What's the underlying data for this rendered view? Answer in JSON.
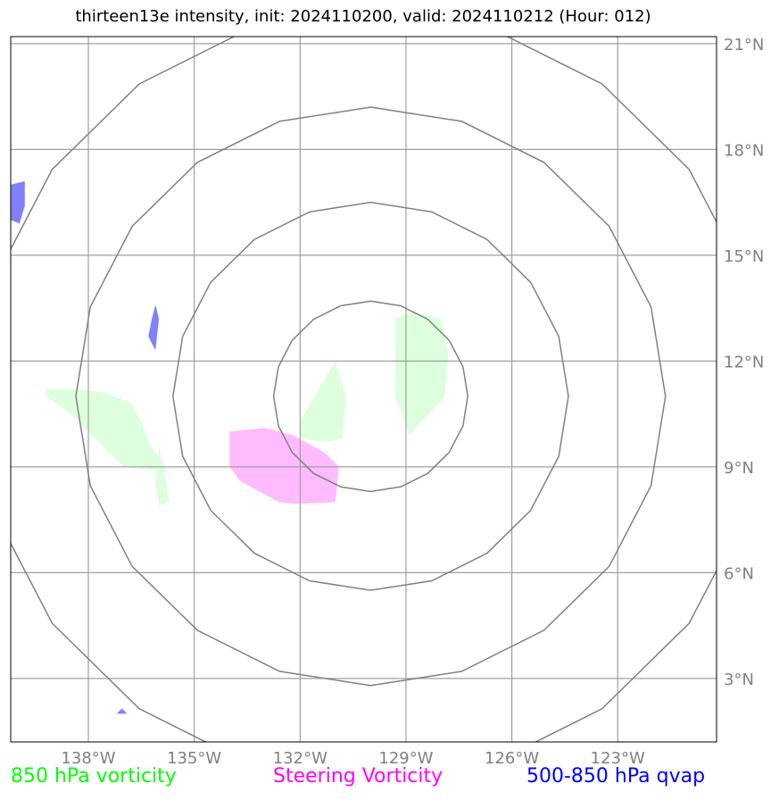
{
  "title": "thirteen13e intensity, init: 2024110200, valid: 2024110212 (Hour: 012)",
  "lon_ticks": [
    {
      "value": -138,
      "label": "138°W"
    },
    {
      "value": -135,
      "label": "135°W"
    },
    {
      "value": -132,
      "label": "132°W"
    },
    {
      "value": -129,
      "label": "129°W"
    },
    {
      "value": -126,
      "label": "126°W"
    },
    {
      "value": -123,
      "label": "123°W"
    }
  ],
  "lat_ticks": [
    {
      "value": 21,
      "label": "21°N"
    },
    {
      "value": 18,
      "label": "18°N"
    },
    {
      "value": 15,
      "label": "15°N"
    },
    {
      "value": 12,
      "label": "12°N"
    },
    {
      "value": 9,
      "label": "9°N"
    },
    {
      "value": 6,
      "label": "6°N"
    },
    {
      "value": 3,
      "label": "3°N"
    }
  ],
  "extent": {
    "lon": [
      -140.2,
      -120.2
    ],
    "lat": [
      1.2,
      21.2
    ]
  },
  "center": {
    "lon": -130.0,
    "lat": 11.0
  },
  "range_rings_deg": [
    2.7,
    5.5,
    8.2,
    10.95
  ],
  "legend": [
    {
      "label": "850 hPa vorticity",
      "color": "#00ff00"
    },
    {
      "label": "Steering Vorticity",
      "color": "#ff00ff"
    },
    {
      "label": "500-850 hPa qvap",
      "color": "#0000ff"
    }
  ],
  "fields": {
    "vorticity_850": {
      "color": "#ddffdd",
      "polygons": [
        [
          [
            -139.2,
            11.2
          ],
          [
            -138.3,
            11.2
          ],
          [
            -137.5,
            11.1
          ],
          [
            -136.8,
            10.8
          ],
          [
            -136.5,
            10.3
          ],
          [
            -136.3,
            9.7
          ],
          [
            -135.7,
            8.8
          ],
          [
            -136.0,
            8.9
          ],
          [
            -137.0,
            9.0
          ],
          [
            -137.8,
            9.8
          ],
          [
            -138.5,
            10.5
          ],
          [
            -139.2,
            11.0
          ]
        ],
        [
          [
            -136.0,
            9.6
          ],
          [
            -135.7,
            8.0
          ],
          [
            -136.0,
            7.9
          ],
          [
            -136.1,
            8.5
          ]
        ],
        [
          [
            -132.0,
            10.3
          ],
          [
            -131.0,
            12.0
          ],
          [
            -130.7,
            11.0
          ],
          [
            -130.8,
            9.8
          ],
          [
            -131.3,
            9.7
          ],
          [
            -132.0,
            9.8
          ]
        ],
        [
          [
            -129.3,
            13.2
          ],
          [
            -128.8,
            13.4
          ],
          [
            -128.0,
            13.2
          ],
          [
            -127.8,
            12.2
          ],
          [
            -127.9,
            11.0
          ],
          [
            -128.9,
            9.9
          ],
          [
            -129.3,
            11.0
          ],
          [
            -129.3,
            12.0
          ]
        ]
      ]
    },
    "steering_vorticity": {
      "color": "#ffbbff",
      "polygons": [
        [
          [
            -134.0,
            10.0
          ],
          [
            -133.0,
            10.1
          ],
          [
            -132.2,
            9.9
          ],
          [
            -131.3,
            9.4
          ],
          [
            -130.9,
            9.0
          ],
          [
            -131.0,
            8.0
          ],
          [
            -132.1,
            7.95
          ],
          [
            -132.6,
            8.0
          ],
          [
            -133.7,
            8.6
          ],
          [
            -134.0,
            9.0
          ]
        ]
      ]
    },
    "qvap_500_850": {
      "color": "#8080ff",
      "polygons": [
        [
          [
            -140.2,
            17.0
          ],
          [
            -139.8,
            17.1
          ],
          [
            -139.8,
            16.4
          ],
          [
            -139.95,
            15.9
          ],
          [
            -140.2,
            16.0
          ]
        ],
        [
          [
            -136.1,
            13.6
          ],
          [
            -136.0,
            13.2
          ],
          [
            -136.1,
            12.3
          ],
          [
            -136.3,
            12.7
          ],
          [
            -136.2,
            13.2
          ]
        ],
        [
          [
            -137.2,
            2.0
          ],
          [
            -137.05,
            2.15
          ],
          [
            -136.9,
            2.0
          ]
        ]
      ]
    }
  }
}
